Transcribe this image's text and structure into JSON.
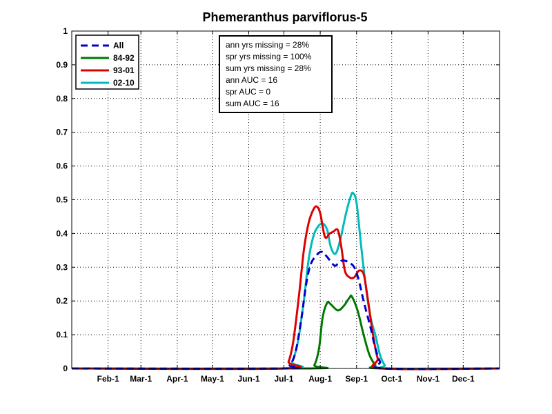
{
  "chart_data": {
    "type": "line",
    "title": "Phemeranthus parviflorus-5",
    "xlabel": "",
    "ylabel": "",
    "xlim": [
      1,
      366
    ],
    "ylim": [
      0,
      1
    ],
    "y_ticks": [
      0,
      0.1,
      0.2,
      0.3,
      0.4,
      0.5,
      0.6,
      0.7,
      0.8,
      0.9,
      1
    ],
    "y_tick_labels": [
      "0",
      "0.1",
      "0.2",
      "0.3",
      "0.4",
      "0.5",
      "0.6",
      "0.7",
      "0.8",
      "0.9",
      "1"
    ],
    "x_ticks": [
      32,
      60,
      91,
      121,
      152,
      182,
      213,
      244,
      274,
      305,
      335
    ],
    "x_tick_labels": [
      "Feb-1",
      "Mar-1",
      "Apr-1",
      "May-1",
      "Jun-1",
      "Jul-1",
      "Aug-1",
      "Sep-1",
      "Oct-1",
      "Nov-1",
      "Dec-1"
    ],
    "grid": true,
    "legend_position": "top-left",
    "series": [
      {
        "name": "All",
        "color": "#0000cc",
        "dash": "dashed",
        "points": [
          [
            1,
            0
          ],
          [
            180,
            0
          ],
          [
            187,
            0.01
          ],
          [
            192,
            0.05
          ],
          [
            197,
            0.15
          ],
          [
            201,
            0.25
          ],
          [
            205,
            0.31
          ],
          [
            211,
            0.34
          ],
          [
            215,
            0.345
          ],
          [
            219,
            0.33
          ],
          [
            225,
            0.305
          ],
          [
            228,
            0.31
          ],
          [
            232,
            0.32
          ],
          [
            237,
            0.315
          ],
          [
            242,
            0.3
          ],
          [
            246,
            0.26
          ],
          [
            250,
            0.2
          ],
          [
            256,
            0.12
          ],
          [
            260,
            0.06
          ],
          [
            264,
            0.02
          ],
          [
            268,
            0
          ],
          [
            366,
            0
          ]
        ]
      },
      {
        "name": "84-92",
        "color": "#007700",
        "dash": "solid",
        "points": [
          [
            1,
            0
          ],
          [
            203,
            0
          ],
          [
            208,
            0.01
          ],
          [
            212,
            0.06
          ],
          [
            215,
            0.15
          ],
          [
            219,
            0.195
          ],
          [
            222,
            0.19
          ],
          [
            228,
            0.172
          ],
          [
            233,
            0.185
          ],
          [
            238,
            0.21
          ],
          [
            240,
            0.213
          ],
          [
            245,
            0.17
          ],
          [
            250,
            0.1
          ],
          [
            255,
            0.04
          ],
          [
            260,
            0.01
          ],
          [
            264,
            0
          ],
          [
            366,
            0
          ]
        ]
      },
      {
        "name": "93-01",
        "color": "#dd0000",
        "dash": "solid",
        "points": [
          [
            1,
            0
          ],
          [
            182,
            0
          ],
          [
            186,
            0.02
          ],
          [
            190,
            0.08
          ],
          [
            195,
            0.22
          ],
          [
            199,
            0.35
          ],
          [
            203,
            0.43
          ],
          [
            207,
            0.47
          ],
          [
            210,
            0.48
          ],
          [
            213,
            0.46
          ],
          [
            217,
            0.39
          ],
          [
            221,
            0.4
          ],
          [
            224,
            0.405
          ],
          [
            228,
            0.41
          ],
          [
            231,
            0.36
          ],
          [
            234,
            0.29
          ],
          [
            238,
            0.27
          ],
          [
            242,
            0.27
          ],
          [
            246,
            0.29
          ],
          [
            250,
            0.28
          ],
          [
            253,
            0.22
          ],
          [
            258,
            0.1
          ],
          [
            262,
            0.03
          ],
          [
            266,
            0
          ],
          [
            366,
            0
          ]
        ]
      },
      {
        "name": "02-10",
        "color": "#00bbbb",
        "dash": "solid",
        "points": [
          [
            1,
            0
          ],
          [
            183,
            0
          ],
          [
            189,
            0.02
          ],
          [
            194,
            0.08
          ],
          [
            199,
            0.2
          ],
          [
            203,
            0.32
          ],
          [
            207,
            0.39
          ],
          [
            211,
            0.42
          ],
          [
            215,
            0.43
          ],
          [
            219,
            0.41
          ],
          [
            222,
            0.36
          ],
          [
            226,
            0.34
          ],
          [
            230,
            0.38
          ],
          [
            235,
            0.46
          ],
          [
            239,
            0.51
          ],
          [
            241,
            0.52
          ],
          [
            244,
            0.49
          ],
          [
            248,
            0.36
          ],
          [
            252,
            0.24
          ],
          [
            256,
            0.15
          ],
          [
            260,
            0.1
          ],
          [
            264,
            0.04
          ],
          [
            268,
            0.01
          ],
          [
            272,
            0
          ],
          [
            366,
            0
          ]
        ]
      }
    ],
    "annotations": [
      "ann yrs missing = 28%",
      "spr yrs missing = 100%",
      "sum yrs missing = 28%",
      "ann AUC = 16",
      "spr AUC = 0",
      "sum AUC = 16"
    ]
  }
}
